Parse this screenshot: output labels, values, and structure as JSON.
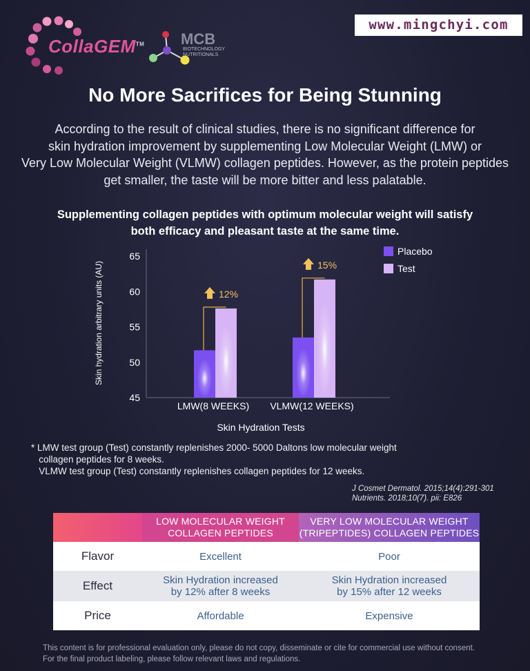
{
  "brand": {
    "logo_name": "CollaGEM",
    "logo_tm": "TM",
    "partner_logo": "MCB",
    "partner_sub": "BIOTECHNOLOGY NUTRITIONALS",
    "website": "www.mingchyi.com"
  },
  "title": "No More Sacrifices for Being Stunning",
  "intro_lines": [
    "According to the result of clinical studies, there is no significant difference for",
    "skin hydration improvement by supplementing Low Molecular Weight (LMW) or",
    "Very Low Molecular Weight (VLMW) collagen peptides. However, as the protein peptides",
    "get smaller, the taste will be more bitter and less palatable."
  ],
  "highlight_lines": [
    "Supplementing collagen peptides with optimum molecular weight will satisfy",
    "both efficacy and pleasant taste at the same time."
  ],
  "chart_data": {
    "type": "bar",
    "categories": [
      "LMW(8 WEEKS)",
      "VLMW(12 WEEKS)"
    ],
    "series": [
      {
        "name": "Placebo",
        "values": [
          51.7,
          53.5
        ],
        "color": "#7b4ff0"
      },
      {
        "name": "Test",
        "values": [
          57.6,
          61.7
        ],
        "color": "#d6b4f5"
      }
    ],
    "annotations": [
      "12%",
      "15%"
    ],
    "ylim": [
      45,
      65
    ],
    "yticks": [
      "45",
      "50",
      "55",
      "60",
      "65"
    ],
    "xlabel": "Skin Hydration Tests",
    "ylabel": "Skin hydration arbitrary units (AU)",
    "legend_position": "top-right"
  },
  "footnote_lines": [
    "* LMW test group (Test) constantly replenishes 2000- 5000 Daltons low molecular weight",
    "   collagen peptides for 8 weeks.",
    "   VLMW test group (Test) constantly replenishes collagen peptides for 12 weeks."
  ],
  "references": [
    "J Cosmet Dermatol. 2015;14(4):291-301",
    "Nutrients. 2018;10(7). pii: E826"
  ],
  "table": {
    "headers": [
      "LOW MOLECULAR WEIGHT\nCOLLAGEN PEPTIDES",
      "VERY LOW MOLECULAR WEIGHT\n(TRIPEPTIDES) COLLAGEN PEPTIDES"
    ],
    "rows": [
      {
        "label": "Flavor",
        "lmw": "Excellent",
        "vlmw": "Poor"
      },
      {
        "label": "Effect",
        "lmw": "Skin Hydration increased\nby 12% after 8 weeks",
        "vlmw": "Skin Hydration increased\nby 15% after 12 weeks"
      },
      {
        "label": "Price",
        "lmw": "Affordable",
        "vlmw": "Expensive"
      }
    ]
  },
  "disclaimer_lines": [
    "This content is for professional evaluation only, please do not copy, disseminate or cite for commercial use without consent.",
    "For the final product labeling, please follow relevant laws and regulations."
  ],
  "colors": {
    "accent_pink": "#e0569a",
    "table_header_left": "#d2458f",
    "table_header_right": "#6e4fbf"
  }
}
